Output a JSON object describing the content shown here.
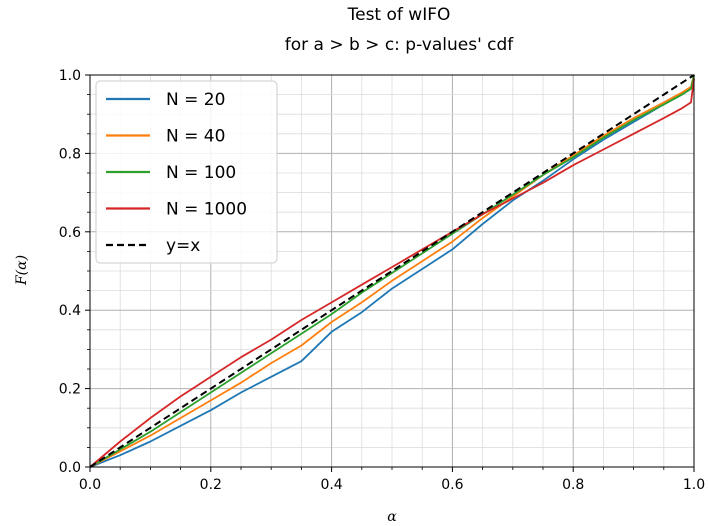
{
  "chart_data": {
    "type": "line",
    "title_line1": "Test of wIFO",
    "title_line2": "for a > b > c: p-values' cdf",
    "xlabel": "α",
    "ylabel": "F(α)",
    "xlim": [
      0.0,
      1.0
    ],
    "ylim": [
      0.0,
      1.0
    ],
    "xticks": [
      "0.0",
      "0.2",
      "0.4",
      "0.6",
      "0.8",
      "1.0"
    ],
    "yticks": [
      "0.0",
      "0.2",
      "0.4",
      "0.6",
      "0.8",
      "1.0"
    ],
    "grid": "major and minor",
    "legend_position": "upper-left",
    "x": [
      0.0,
      0.05,
      0.1,
      0.15,
      0.2,
      0.25,
      0.3,
      0.35,
      0.4,
      0.45,
      0.5,
      0.55,
      0.6,
      0.65,
      0.7,
      0.75,
      0.8,
      0.85,
      0.9,
      0.95,
      0.98,
      0.995,
      1.0
    ],
    "series": [
      {
        "name": "N = 20",
        "color": "#1f77b4",
        "dash": "solid",
        "values": [
          0.0,
          0.03,
          0.065,
          0.105,
          0.145,
          0.19,
          0.23,
          0.27,
          0.345,
          0.395,
          0.455,
          0.505,
          0.555,
          0.62,
          0.68,
          0.73,
          0.785,
          0.835,
          0.88,
          0.925,
          0.95,
          0.965,
          1.0
        ]
      },
      {
        "name": "N = 40",
        "color": "#ff7f0e",
        "dash": "solid",
        "values": [
          0.0,
          0.04,
          0.08,
          0.125,
          0.17,
          0.215,
          0.265,
          0.31,
          0.37,
          0.42,
          0.475,
          0.525,
          0.575,
          0.635,
          0.69,
          0.745,
          0.795,
          0.845,
          0.89,
          0.93,
          0.955,
          0.97,
          1.0
        ]
      },
      {
        "name": "N = 100",
        "color": "#2ca02c",
        "dash": "solid",
        "values": [
          0.0,
          0.045,
          0.09,
          0.14,
          0.19,
          0.24,
          0.29,
          0.34,
          0.39,
          0.445,
          0.495,
          0.545,
          0.595,
          0.645,
          0.695,
          0.745,
          0.79,
          0.84,
          0.885,
          0.925,
          0.95,
          0.965,
          1.0
        ]
      },
      {
        "name": "N = 1000",
        "color": "#d62728",
        "dash": "solid",
        "values": [
          0.0,
          0.065,
          0.125,
          0.18,
          0.23,
          0.28,
          0.325,
          0.375,
          0.42,
          0.465,
          0.51,
          0.555,
          0.6,
          0.645,
          0.685,
          0.725,
          0.77,
          0.81,
          0.85,
          0.89,
          0.915,
          0.93,
          0.99
        ]
      },
      {
        "name": "y=x",
        "color": "#000000",
        "dash": "dashed",
        "values": [
          0.0,
          0.05,
          0.1,
          0.15,
          0.2,
          0.25,
          0.3,
          0.35,
          0.4,
          0.45,
          0.5,
          0.55,
          0.6,
          0.65,
          0.7,
          0.75,
          0.8,
          0.85,
          0.9,
          0.95,
          0.98,
          0.995,
          1.0
        ]
      }
    ]
  }
}
